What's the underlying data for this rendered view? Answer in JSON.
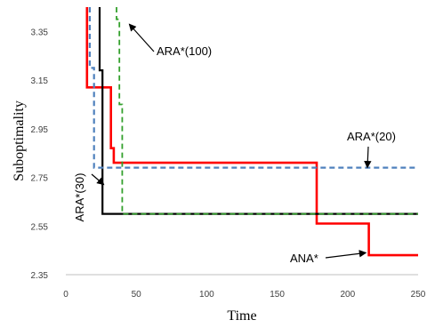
{
  "chart_data": {
    "type": "line",
    "xlabel": "Time",
    "ylabel": "Suboptimality",
    "xlim": [
      0,
      250
    ],
    "ylim": [
      2.35,
      3.45
    ],
    "x_ticks": [
      0,
      50,
      100,
      150,
      200,
      250
    ],
    "y_ticks": [
      2.35,
      2.55,
      2.75,
      2.95,
      3.15,
      3.35
    ],
    "y_tick_labels": [
      "2.35",
      "2.55",
      "2.75",
      "2.95",
      "3.15",
      "3.35"
    ],
    "grid": false,
    "legend": "none",
    "series": [
      {
        "name": "ANA*",
        "color": "#ff0000",
        "dash": "solid",
        "points": [
          [
            15,
            3.45
          ],
          [
            15,
            3.12
          ],
          [
            32,
            3.12
          ],
          [
            32,
            2.87
          ],
          [
            34,
            2.87
          ],
          [
            34,
            2.81
          ],
          [
            178,
            2.81
          ],
          [
            178,
            2.56
          ],
          [
            215,
            2.56
          ],
          [
            215,
            2.43
          ],
          [
            250,
            2.43
          ]
        ]
      },
      {
        "name": "ARA*(30)",
        "color": "#000000",
        "dash": "solid",
        "points": [
          [
            24,
            3.45
          ],
          [
            24,
            3.19
          ],
          [
            26,
            3.19
          ],
          [
            26,
            2.6
          ],
          [
            250,
            2.6
          ]
        ]
      },
      {
        "name": "ARA*(20)",
        "color": "#4f81bd",
        "dash": "dashed",
        "points": [
          [
            17,
            3.45
          ],
          [
            17,
            3.2
          ],
          [
            20,
            3.2
          ],
          [
            20,
            2.79
          ],
          [
            250,
            2.79
          ]
        ]
      },
      {
        "name": "ARA*(100)",
        "color": "#33a02c",
        "dash": "dashed",
        "points": [
          [
            36,
            3.45
          ],
          [
            36,
            3.4
          ],
          [
            38,
            3.4
          ],
          [
            38,
            3.05
          ],
          [
            40,
            3.05
          ],
          [
            40,
            2.6
          ],
          [
            250,
            2.6
          ]
        ]
      }
    ],
    "annotations": [
      {
        "text": "ARA*(100)",
        "target": [
          45,
          3.38
        ]
      },
      {
        "text": "ARA*(20)",
        "target": [
          214,
          2.79
        ]
      },
      {
        "text": "ARA*(30)",
        "target": [
          27,
          2.72
        ]
      },
      {
        "text": "ANA*",
        "target": [
          213,
          2.44
        ]
      }
    ]
  }
}
